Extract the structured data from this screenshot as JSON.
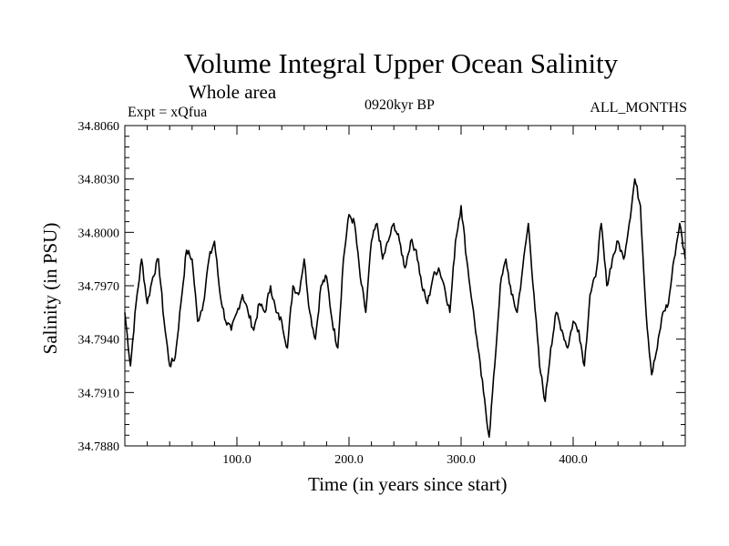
{
  "chart_data": {
    "type": "line",
    "title": "Volume Integral Upper Ocean Salinity",
    "subtitle": "Whole area",
    "experiment_label": "Expt = xQfua",
    "period_label": "0920kyr BP",
    "months_label": "ALL_MONTHS",
    "xlabel": "Time (in years since start)",
    "ylabel": "Salinity (in PSU)",
    "xlim": [
      0,
      500
    ],
    "ylim": [
      34.788,
      34.806
    ],
    "xticks": [
      100,
      200,
      300,
      400
    ],
    "xtick_labels": [
      "100.0",
      "200.0",
      "300.0",
      "400.0"
    ],
    "yticks": [
      34.788,
      34.791,
      34.794,
      34.797,
      34.8,
      34.803,
      34.806
    ],
    "ytick_labels": [
      "34.7880",
      "34.7910",
      "34.7940",
      "34.7970",
      "34.8000",
      "34.8030",
      "34.8060"
    ],
    "series": [
      {
        "name": "Salinity",
        "x": [
          0,
          5,
          10,
          15,
          20,
          25,
          30,
          35,
          40,
          45,
          50,
          55,
          60,
          65,
          70,
          75,
          80,
          85,
          90,
          95,
          100,
          105,
          110,
          115,
          120,
          125,
          130,
          135,
          140,
          145,
          150,
          155,
          160,
          165,
          170,
          175,
          180,
          185,
          190,
          195,
          200,
          205,
          210,
          215,
          220,
          225,
          230,
          235,
          240,
          245,
          250,
          255,
          260,
          265,
          270,
          275,
          280,
          285,
          290,
          295,
          300,
          305,
          310,
          315,
          320,
          325,
          330,
          335,
          340,
          345,
          350,
          355,
          360,
          365,
          370,
          375,
          380,
          385,
          390,
          395,
          400,
          405,
          410,
          415,
          420,
          425,
          430,
          435,
          440,
          445,
          450,
          455,
          460,
          465,
          470,
          475,
          480,
          485,
          490,
          495,
          500
        ],
        "values": [
          34.7955,
          34.7925,
          34.796,
          34.7985,
          34.796,
          34.7975,
          34.7985,
          34.795,
          34.7925,
          34.793,
          34.796,
          34.799,
          34.7985,
          34.795,
          34.796,
          34.7985,
          34.7995,
          34.7965,
          34.795,
          34.7945,
          34.7955,
          34.7965,
          34.7955,
          34.7945,
          34.796,
          34.7955,
          34.797,
          34.7955,
          34.795,
          34.7935,
          34.797,
          34.7965,
          34.7985,
          34.7955,
          34.794,
          34.797,
          34.7975,
          34.795,
          34.7935,
          34.7985,
          34.801,
          34.8005,
          34.7975,
          34.7955,
          34.7995,
          34.8005,
          34.7985,
          34.7995,
          34.8005,
          34.7995,
          34.798,
          34.7995,
          34.799,
          34.797,
          34.796,
          34.7975,
          34.798,
          34.797,
          34.7955,
          34.7995,
          34.8015,
          34.7985,
          34.796,
          34.7935,
          34.791,
          34.7885,
          34.7925,
          34.797,
          34.7985,
          34.7965,
          34.7955,
          34.798,
          34.8005,
          34.7965,
          34.7925,
          34.7905,
          34.7935,
          34.7955,
          34.7945,
          34.7935,
          34.795,
          34.7945,
          34.7925,
          34.7965,
          34.7975,
          34.8005,
          34.797,
          34.7985,
          34.7995,
          34.7985,
          34.8005,
          34.803,
          34.8015,
          34.7955,
          34.792,
          34.7935,
          34.7955,
          34.796,
          34.7985,
          34.8005,
          34.7985
        ]
      }
    ]
  }
}
